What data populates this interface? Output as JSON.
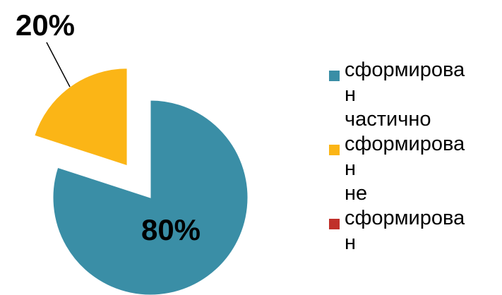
{
  "chart_data": {
    "type": "pie",
    "categories": [
      "сформирован частично",
      "сформирован не",
      "сформирован"
    ],
    "values": [
      80,
      20,
      0
    ],
    "data_labels": [
      "80%",
      "20%",
      ""
    ],
    "colors": [
      "#3a8ea6",
      "#fbb516",
      "#c0302a"
    ],
    "exploded": true,
    "legend_position": "right",
    "legend": [
      {
        "lines": [
          "сформирова",
          "н",
          "частично"
        ],
        "color": "#3a8ea6"
      },
      {
        "lines": [
          "сформирова",
          "н",
          "не"
        ],
        "color": "#fbb516"
      },
      {
        "lines": [
          "сформирова",
          "н"
        ],
        "color": "#c0302a"
      }
    ]
  }
}
